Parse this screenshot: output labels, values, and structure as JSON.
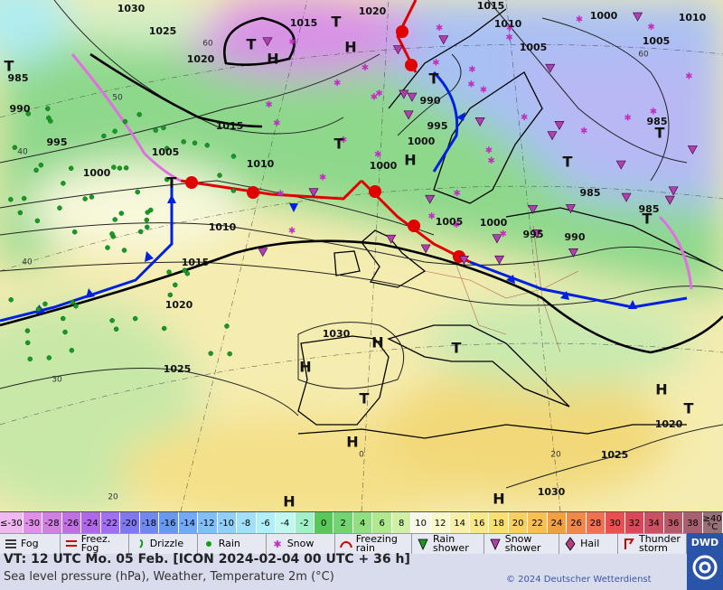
{
  "map": {
    "isobar_labels": [
      "1030",
      "1025",
      "1015",
      "1020",
      "1015",
      "1010",
      "1000",
      "1010",
      "1020",
      "1005",
      "1005",
      "985",
      "990",
      "995",
      "1015",
      "990",
      "995",
      "985",
      "1005",
      "1010",
      "1000",
      "1000",
      "1000",
      "985",
      "985",
      "1010",
      "1005",
      "1000",
      "995",
      "990",
      "1015",
      "1020",
      "1030",
      "1025",
      "1020",
      "1025",
      "1030"
    ],
    "pressure_centers": [
      "T",
      "T",
      "H",
      "H",
      "T",
      "T",
      "T",
      "H",
      "T",
      "T",
      "T",
      "T",
      "H",
      "T",
      "H",
      "T",
      "H",
      "H",
      "H",
      "H",
      "T"
    ],
    "temperature_labels": [
      "60",
      "50",
      "40",
      "40",
      "30",
      "20",
      "0",
      "20",
      "60"
    ]
  },
  "legend": {
    "temperature_scale": [
      {
        "label": "≤-30",
        "color": "#f0b8f0"
      },
      {
        "label": "-30",
        "color": "#e090e8"
      },
      {
        "label": "-28",
        "color": "#d080e0"
      },
      {
        "label": "-26",
        "color": "#c070e0"
      },
      {
        "label": "-24",
        "color": "#b068e8"
      },
      {
        "label": "-22",
        "color": "#a070f0"
      },
      {
        "label": "-20",
        "color": "#8078f0"
      },
      {
        "label": "-18",
        "color": "#7088f0"
      },
      {
        "label": "-16",
        "color": "#6898f0"
      },
      {
        "label": "-14",
        "color": "#70aaf8"
      },
      {
        "label": "-12",
        "color": "#80c0f8"
      },
      {
        "label": "-10",
        "color": "#90d0f8"
      },
      {
        "label": "-8",
        "color": "#a0e0f8"
      },
      {
        "label": "-6",
        "color": "#b0eef8"
      },
      {
        "label": "-4",
        "color": "#c0f8f0"
      },
      {
        "label": "-2",
        "color": "#a0f0c8"
      },
      {
        "label": "0",
        "color": "#58c858"
      },
      {
        "label": "2",
        "color": "#70d470"
      },
      {
        "label": "4",
        "color": "#90e080"
      },
      {
        "label": "6",
        "color": "#b0e890"
      },
      {
        "label": "8",
        "color": "#d0f0a8"
      },
      {
        "label": "10",
        "color": "#f8f8e8"
      },
      {
        "label": "12",
        "color": "#f8f8c8"
      },
      {
        "label": "14",
        "color": "#f8f0a8"
      },
      {
        "label": "16",
        "color": "#f8e888"
      },
      {
        "label": "18",
        "color": "#f8e070"
      },
      {
        "label": "20",
        "color": "#f8d060"
      },
      {
        "label": "22",
        "color": "#f8c050"
      },
      {
        "label": "24",
        "color": "#f0a040"
      },
      {
        "label": "26",
        "color": "#f08848"
      },
      {
        "label": "28",
        "color": "#f07050"
      },
      {
        "label": "30",
        "color": "#e85050"
      },
      {
        "label": "32",
        "color": "#d84858"
      },
      {
        "label": "34",
        "color": "#c85060"
      },
      {
        "label": "36",
        "color": "#b85868"
      },
      {
        "label": "38",
        "color": "#a86070"
      },
      {
        "label": "≥40 °C",
        "color": "#987078"
      }
    ],
    "weather_symbols": [
      "Fog",
      "Freez. Fog",
      "Drizzle",
      "Rain",
      "Snow",
      "Freezing rain",
      "Rain shower",
      "Snow shower",
      "Hail",
      "Thunder storm"
    ]
  },
  "footer": {
    "valid_time": "VT: 12 UTC Mo.  05 Feb. [ICON 2024-02-04  00 UTC + 36 h]",
    "description": "Sea level pressure (hPa), Weather, Temperature 2m (°C)",
    "copyright": "© 2024 Deutscher Wetterdienst",
    "logo": "DWD"
  }
}
